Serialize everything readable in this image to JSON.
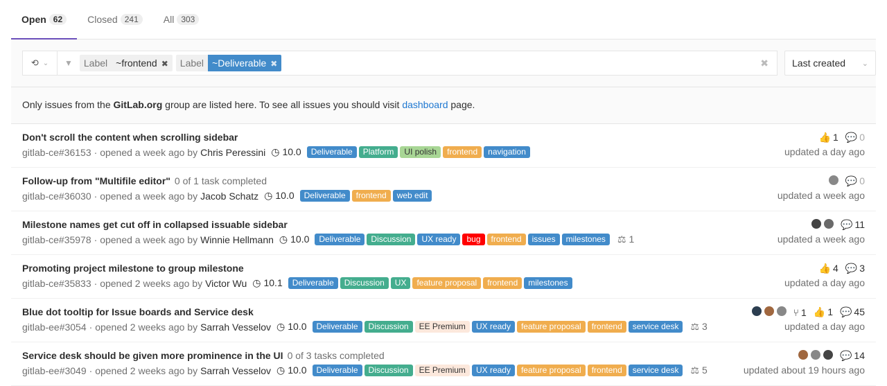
{
  "tabs": [
    {
      "label": "Open",
      "count": "62"
    },
    {
      "label": "Closed",
      "count": "241"
    },
    {
      "label": "All",
      "count": "303"
    }
  ],
  "filter": {
    "tokens": [
      {
        "key": "Label",
        "value": "~frontend",
        "color": "#f0f0f0",
        "text": "#2e2e2e"
      },
      {
        "key": "Label",
        "value": "~Deliverable",
        "color": "#428bca",
        "text": "#ffffff"
      }
    ],
    "sort": "Last created"
  },
  "notice": {
    "pre": "Only issues from the ",
    "group": "GitLab.org",
    "mid": " group are listed here. To see all issues you should visit ",
    "link": "dashboard",
    "post": " page."
  },
  "issues": [
    {
      "title": "Don't scroll the content when scrolling sidebar",
      "tasks": "",
      "ref": "gitlab-ce#36153",
      "opened": "· opened a week ago by",
      "author": "Chris Peressini",
      "milestone": "10.0",
      "labels": [
        [
          "Deliverable",
          "#428bca"
        ],
        [
          "Platform",
          "#44ad8e"
        ],
        [
          "UI polish",
          "#a8d695"
        ],
        [
          "frontend",
          "#f0ad4e"
        ],
        [
          "navigation",
          "#428bca"
        ]
      ],
      "weight": "",
      "avatars": 0,
      "mrs": "",
      "upvotes": "1",
      "comments": "0",
      "updated": "updated a day ago"
    },
    {
      "title": "Follow-up from \"Multifile editor\"",
      "tasks": "0 of 1 task completed",
      "ref": "gitlab-ce#36030",
      "opened": "· opened a week ago by",
      "author": "Jacob Schatz",
      "milestone": "10.0",
      "labels": [
        [
          "Deliverable",
          "#428bca"
        ],
        [
          "frontend",
          "#f0ad4e"
        ],
        [
          "web edit",
          "#428bca"
        ]
      ],
      "weight": "",
      "avatars": 1,
      "mrs": "",
      "upvotes": "",
      "comments": "0",
      "updated": "updated a week ago"
    },
    {
      "title": "Milestone names get cut off in collapsed issuable sidebar",
      "tasks": "",
      "ref": "gitlab-ce#35978",
      "opened": "· opened a week ago by",
      "author": "Winnie Hellmann",
      "milestone": "10.0",
      "labels": [
        [
          "Deliverable",
          "#428bca"
        ],
        [
          "Discussion",
          "#44ad8e"
        ],
        [
          "UX ready",
          "#428bca"
        ],
        [
          "bug",
          "#ff0000"
        ],
        [
          "frontend",
          "#f0ad4e"
        ],
        [
          "issues",
          "#428bca"
        ],
        [
          "milestones",
          "#428bca"
        ]
      ],
      "weight": "1",
      "avatars": 2,
      "mrs": "",
      "upvotes": "",
      "comments": "11",
      "updated": "updated a week ago"
    },
    {
      "title": "Promoting project milestone to group milestone",
      "tasks": "",
      "ref": "gitlab-ce#35833",
      "opened": "· opened 2 weeks ago by",
      "author": "Victor Wu",
      "milestone": "10.1",
      "labels": [
        [
          "Deliverable",
          "#428bca"
        ],
        [
          "Discussion",
          "#44ad8e"
        ],
        [
          "UX",
          "#44ad8e"
        ],
        [
          "feature proposal",
          "#f0ad4e"
        ],
        [
          "frontend",
          "#f0ad4e"
        ],
        [
          "milestones",
          "#428bca"
        ]
      ],
      "weight": "",
      "avatars": 0,
      "mrs": "",
      "upvotes": "4",
      "comments": "3",
      "updated": "updated a day ago"
    },
    {
      "title": "Blue dot tooltip for Issue boards and Service desk",
      "tasks": "",
      "ref": "gitlab-ee#3054",
      "opened": "· opened 2 weeks ago by",
      "author": "Sarrah Vesselov",
      "milestone": "10.0",
      "labels": [
        [
          "Deliverable",
          "#428bca"
        ],
        [
          "Discussion",
          "#44ad8e"
        ],
        [
          "EE Premium",
          "#fce8dc"
        ],
        [
          "UX ready",
          "#428bca"
        ],
        [
          "feature proposal",
          "#f0ad4e"
        ],
        [
          "frontend",
          "#f0ad4e"
        ],
        [
          "service desk",
          "#428bca"
        ]
      ],
      "weight": "3",
      "avatars": 3,
      "mrs": "1",
      "upvotes": "1",
      "comments": "45",
      "updated": "updated a day ago"
    },
    {
      "title": "Service desk should be given more prominence in the UI",
      "tasks": "0 of 3 tasks completed",
      "ref": "gitlab-ee#3049",
      "opened": "· opened 2 weeks ago by",
      "author": "Sarrah Vesselov",
      "milestone": "10.0",
      "labels": [
        [
          "Deliverable",
          "#428bca"
        ],
        [
          "Discussion",
          "#44ad8e"
        ],
        [
          "EE Premium",
          "#fce8dc"
        ],
        [
          "UX ready",
          "#428bca"
        ],
        [
          "feature proposal",
          "#f0ad4e"
        ],
        [
          "frontend",
          "#f0ad4e"
        ],
        [
          "service desk",
          "#428bca"
        ]
      ],
      "weight": "5",
      "avatars": 3,
      "mrs": "",
      "upvotes": "",
      "comments": "14",
      "updated": "updated about 19 hours ago"
    }
  ]
}
